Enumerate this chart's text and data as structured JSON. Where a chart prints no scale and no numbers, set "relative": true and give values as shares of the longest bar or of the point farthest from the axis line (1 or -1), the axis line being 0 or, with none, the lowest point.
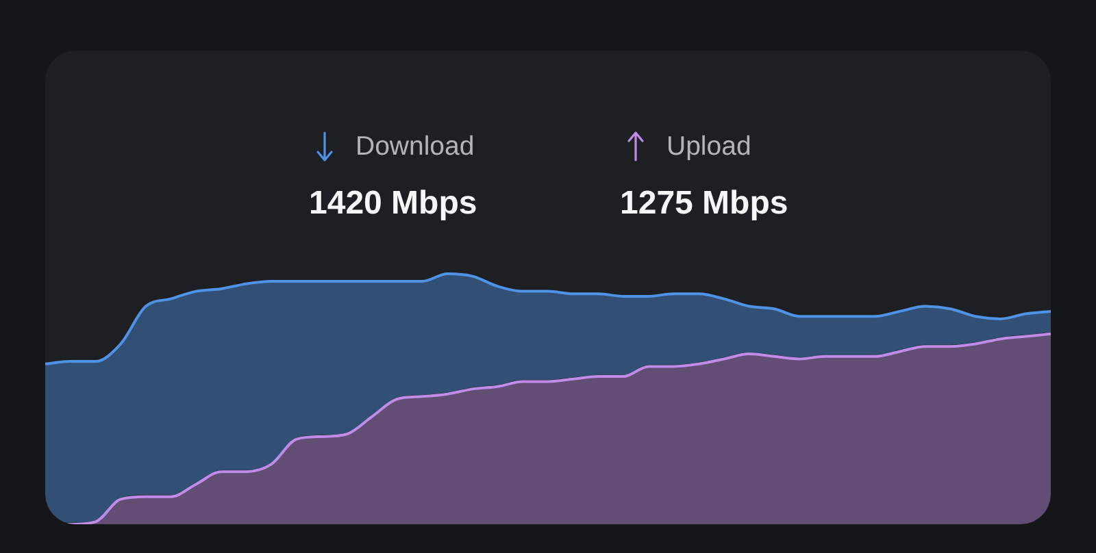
{
  "chart_data": {
    "type": "area",
    "relative": true,
    "categories": [
      null,
      null,
      null,
      null,
      null,
      null,
      null,
      null,
      null,
      null,
      null,
      null,
      null,
      null,
      null,
      null,
      null,
      null,
      null,
      null,
      null,
      null,
      null,
      null,
      null,
      null,
      null,
      null,
      null,
      null,
      null,
      null,
      null,
      null,
      null,
      null,
      null,
      null,
      null,
      null,
      null
    ],
    "series": [
      {
        "name": "Download",
        "color": "#4f93e6",
        "values": [
          0.64,
          0.65,
          0.65,
          0.72,
          0.87,
          0.9,
          0.93,
          0.94,
          0.96,
          0.97,
          0.97,
          0.97,
          0.97,
          0.97,
          0.97,
          0.97,
          1.0,
          0.99,
          0.95,
          0.93,
          0.93,
          0.92,
          0.92,
          0.91,
          0.91,
          0.92,
          0.92,
          0.9,
          0.87,
          0.86,
          0.83,
          0.83,
          0.83,
          0.83,
          0.85,
          0.87,
          0.86,
          0.83,
          0.82,
          0.84,
          0.85
        ]
      },
      {
        "name": "Upload",
        "color": "#c08ce8",
        "values": [
          0,
          0,
          0.01,
          0.1,
          0.11,
          0.11,
          0.16,
          0.21,
          0.21,
          0.24,
          0.34,
          0.35,
          0.36,
          0.43,
          0.5,
          0.51,
          0.52,
          0.54,
          0.55,
          0.57,
          0.57,
          0.58,
          0.59,
          0.59,
          0.63,
          0.63,
          0.64,
          0.66,
          0.68,
          0.67,
          0.66,
          0.67,
          0.67,
          0.67,
          0.69,
          0.71,
          0.71,
          0.72,
          0.74,
          0.75,
          0.76
        ]
      }
    ],
    "annotations": [
      "1420 Mbps",
      "1275 Mbps"
    ],
    "legend": "top",
    "marker": "none"
  }
}
